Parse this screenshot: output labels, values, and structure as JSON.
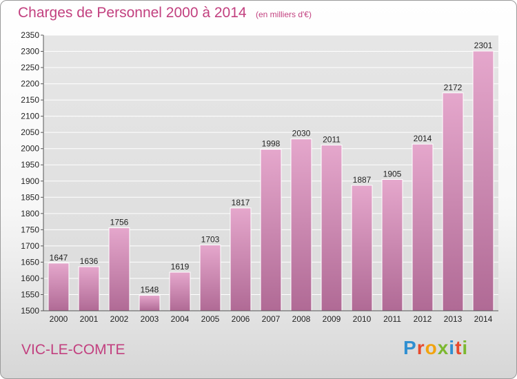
{
  "chart_data": {
    "type": "bar",
    "title": "Charges de Personnel 2000 à 2014",
    "subtitle": "(en milliers d'€)",
    "categories": [
      "2000",
      "2001",
      "2002",
      "2003",
      "2004",
      "2005",
      "2006",
      "2007",
      "2008",
      "2009",
      "2010",
      "2011",
      "2012",
      "2013",
      "2014"
    ],
    "values": [
      1647,
      1636,
      1756,
      1548,
      1619,
      1703,
      1817,
      1998,
      2030,
      2011,
      1887,
      1905,
      2014,
      2172,
      2301
    ],
    "ylim": [
      1500,
      2350
    ],
    "ytick_step": 50,
    "grid": true,
    "xlabel": "",
    "ylabel": "",
    "bar_color_top": "#e5a7cc",
    "bar_color_bottom": "#b06a95"
  },
  "footer": {
    "commune": "VIC-LE-COMTE",
    "brand_letters": [
      {
        "ch": "P",
        "color": "#2f8fd1"
      },
      {
        "ch": "r",
        "color": "#e7492c"
      },
      {
        "ch": "o",
        "color": "#f2a30f"
      },
      {
        "ch": "x",
        "color": "#7cb82f"
      },
      {
        "ch": "i",
        "color": "#2f8fd1"
      },
      {
        "ch": "t",
        "color": "#e7492c"
      },
      {
        "ch": "i",
        "color": "#7cb82f"
      }
    ]
  },
  "colors": {
    "accent": "#c2407f",
    "grid": "#ffffff"
  }
}
